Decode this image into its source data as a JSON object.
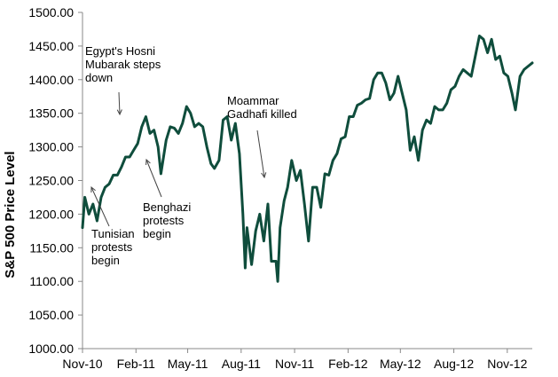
{
  "colors": {
    "line": "#0f4d3c",
    "axis": "#888888",
    "arrow": "#444444"
  },
  "chart_data": {
    "type": "line",
    "ylabel": "S&P 500 Price Level",
    "xlabel": "",
    "title": "",
    "ylim": [
      1000,
      1500
    ],
    "yticks": [
      1000,
      1050,
      1100,
      1150,
      1200,
      1250,
      1300,
      1350,
      1400,
      1450,
      1500
    ],
    "ytick_labels": [
      "1000.00",
      "1050.00",
      "1100.00",
      "1150.00",
      "1200.00",
      "1250.00",
      "1300.00",
      "1350.00",
      "1400.00",
      "1450.00",
      "1500.00"
    ],
    "xlim": [
      "2010-11-01",
      "2012-12-14"
    ],
    "xticks": [
      "2010-11-01",
      "2011-02-01",
      "2011-05-01",
      "2011-08-01",
      "2011-11-01",
      "2012-02-01",
      "2012-05-01",
      "2012-08-01",
      "2012-11-01"
    ],
    "xtick_labels": [
      "Nov-10",
      "Feb-11",
      "May-11",
      "Aug-11",
      "Nov-11",
      "Feb-12",
      "May-12",
      "Aug-12",
      "Nov-12"
    ],
    "grid": false,
    "legend": "none",
    "series": [
      {
        "x": [
          "2010-11-01",
          "2010-11-05",
          "2010-11-12",
          "2010-11-19",
          "2010-11-26",
          "2010-12-03",
          "2010-12-10",
          "2010-12-17",
          "2010-12-24",
          "2010-12-31",
          "2011-01-07",
          "2011-01-14",
          "2011-01-21",
          "2011-01-28",
          "2011-02-04",
          "2011-02-11",
          "2011-02-18",
          "2011-02-25",
          "2011-03-04",
          "2011-03-11",
          "2011-03-16",
          "2011-03-25",
          "2011-04-01",
          "2011-04-08",
          "2011-04-15",
          "2011-04-22",
          "2011-04-29",
          "2011-05-06",
          "2011-05-13",
          "2011-05-20",
          "2011-05-27",
          "2011-06-03",
          "2011-06-10",
          "2011-06-16",
          "2011-06-24",
          "2011-07-01",
          "2011-07-08",
          "2011-07-15",
          "2011-07-22",
          "2011-07-29",
          "2011-08-04",
          "2011-08-08",
          "2011-08-11",
          "2011-08-19",
          "2011-08-26",
          "2011-09-02",
          "2011-09-09",
          "2011-09-16",
          "2011-09-22",
          "2011-09-30",
          "2011-10-03",
          "2011-10-07",
          "2011-10-14",
          "2011-10-20",
          "2011-10-27",
          "2011-11-04",
          "2011-11-11",
          "2011-11-18",
          "2011-11-25",
          "2011-12-02",
          "2011-12-09",
          "2011-12-16",
          "2011-12-23",
          "2011-12-30",
          "2012-01-06",
          "2012-01-13",
          "2012-01-20",
          "2012-01-27",
          "2012-02-03",
          "2012-02-10",
          "2012-02-17",
          "2012-02-24",
          "2012-03-02",
          "2012-03-09",
          "2012-03-16",
          "2012-03-23",
          "2012-03-30",
          "2012-04-06",
          "2012-04-13",
          "2012-04-20",
          "2012-04-27",
          "2012-05-04",
          "2012-05-11",
          "2012-05-18",
          "2012-05-25",
          "2012-06-01",
          "2012-06-08",
          "2012-06-15",
          "2012-06-22",
          "2012-06-29",
          "2012-07-06",
          "2012-07-13",
          "2012-07-20",
          "2012-07-27",
          "2012-08-03",
          "2012-08-10",
          "2012-08-17",
          "2012-08-24",
          "2012-08-31",
          "2012-09-07",
          "2012-09-14",
          "2012-09-21",
          "2012-09-28",
          "2012-10-05",
          "2012-10-12",
          "2012-10-19",
          "2012-10-26",
          "2012-11-02",
          "2012-11-09",
          "2012-11-15",
          "2012-11-23",
          "2012-11-30",
          "2012-12-07",
          "2012-12-14"
        ],
        "values": [
          1180,
          1225,
          1200,
          1215,
          1190,
          1225,
          1240,
          1245,
          1258,
          1258,
          1270,
          1285,
          1285,
          1295,
          1305,
          1330,
          1345,
          1320,
          1325,
          1300,
          1260,
          1310,
          1330,
          1328,
          1320,
          1335,
          1360,
          1350,
          1330,
          1335,
          1330,
          1300,
          1275,
          1268,
          1280,
          1340,
          1345,
          1310,
          1335,
          1290,
          1200,
          1120,
          1180,
          1125,
          1175,
          1200,
          1160,
          1215,
          1130,
          1130,
          1100,
          1180,
          1220,
          1240,
          1280,
          1250,
          1265,
          1215,
          1160,
          1240,
          1240,
          1210,
          1260,
          1258,
          1280,
          1290,
          1312,
          1315,
          1345,
          1345,
          1362,
          1365,
          1370,
          1372,
          1400,
          1410,
          1410,
          1395,
          1370,
          1380,
          1405,
          1380,
          1355,
          1295,
          1315,
          1280,
          1325,
          1340,
          1335,
          1360,
          1355,
          1355,
          1365,
          1385,
          1390,
          1405,
          1415,
          1410,
          1405,
          1435,
          1465,
          1460,
          1440,
          1460,
          1430,
          1435,
          1410,
          1405,
          1380,
          1355,
          1405,
          1415,
          1420,
          1425
        ]
      }
    ],
    "annotations": [
      {
        "text": [
          "Egypt's Hosni",
          "Mubarak steps",
          "down"
        ],
        "x": "2011-02-11",
        "y": 1345
      },
      {
        "text": [
          "Tunisian",
          "protests",
          "begin"
        ],
        "x": "2010-12-17",
        "y": 1245
      },
      {
        "text": [
          "Benghazi",
          "protests",
          "begin"
        ],
        "x": "2011-02-18",
        "y": 1262
      },
      {
        "text": [
          "Moammar",
          "Gadhafi killed"
        ],
        "x": "2011-10-20",
        "y": 1245
      }
    ]
  }
}
